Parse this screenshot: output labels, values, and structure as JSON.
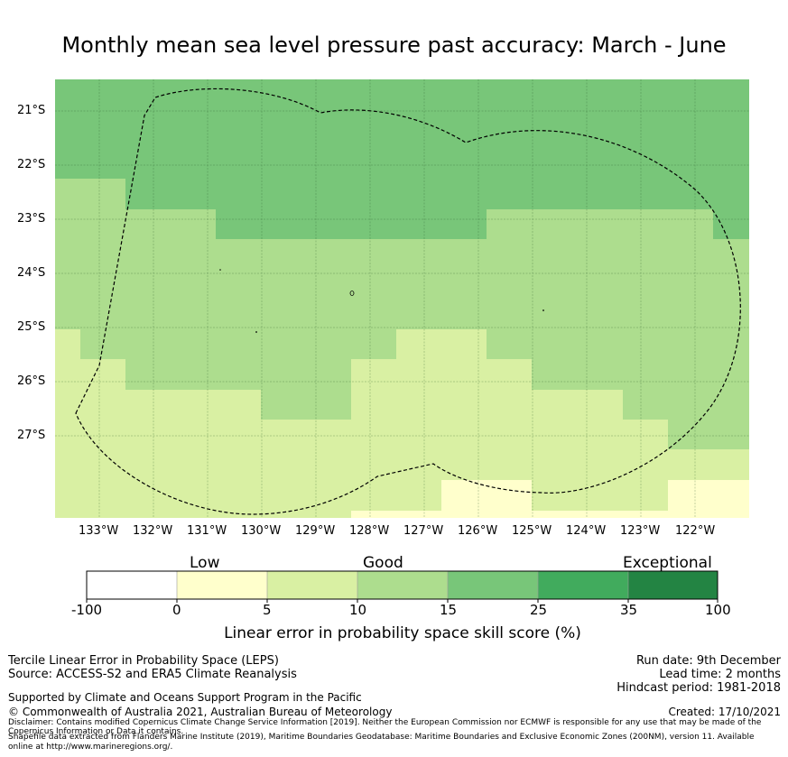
{
  "title": "Monthly mean sea level pressure past accuracy: March - June",
  "map": {
    "lat_labels": [
      "21°S",
      "22°S",
      "23°S",
      "24°S",
      "25°S",
      "26°S",
      "27°S"
    ],
    "lon_labels": [
      "133°W",
      "132°W",
      "131°W",
      "130°W",
      "129°W",
      "128°W",
      "127°W",
      "126°W",
      "125°W",
      "124°W",
      "123°W",
      "122°W"
    ],
    "boundary": "EEZ boundary (dashed line)"
  },
  "colorbar": {
    "categories": [
      "Low",
      "Good",
      "Exceptional"
    ],
    "ticks": [
      "-100",
      "0",
      "5",
      "10",
      "15",
      "25",
      "35",
      "100"
    ],
    "colors": [
      "#ffffff",
      "#ffffcc",
      "#d9f0a3",
      "#addd8e",
      "#78c679",
      "#41ab5d",
      "#238443"
    ],
    "label": "Linear error in probability space skill score (%)"
  },
  "footer": {
    "method": "Tercile Linear Error in Probability Space (LEPS)",
    "source": "Source: ACCESS-S2 and ERA5 Climate Reanalysis",
    "support": "Supported by Climate and Oceans Support Program in the Pacific",
    "copyright": "© Commonwealth of Australia 2021, Australian Bureau of Meteorology",
    "disclaimer1": "Disclaimer: Contains modified Copernicus Climate Change Service Information [2019]. Neither the European Commission nor ECMWF is responsible for any use that may be made of the",
    "disclaimer2": "Copernicus Information or Data it contains.",
    "shapefile1": "Shapefile data extracted from Flanders Marine Institute (2019), Maritime Boundaries Geodatabase: Maritime Boundaries and Exclusive Economic Zones (200NM), version 11. Available",
    "shapefile2": "online at http://www.marineregions.org/.",
    "run_date": "Run date: 9th December",
    "lead_time": "Lead time: 2 months",
    "hindcast": "Hindcast period: 1981-2018",
    "created": "Created: 17/10/2021"
  }
}
